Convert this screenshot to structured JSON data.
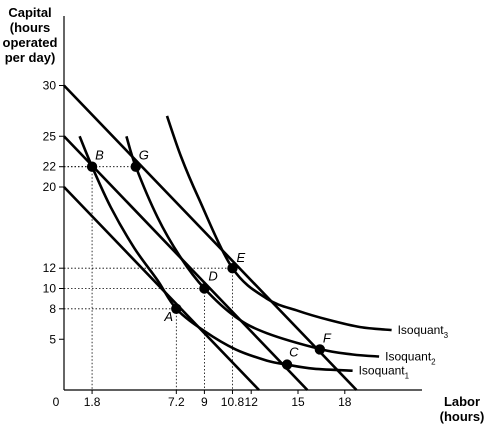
{
  "chart_data": {
    "type": "line",
    "ylabel_lines": [
      "Capital",
      "(hours",
      "operated",
      "per day)"
    ],
    "xlabel_lines": [
      "Labor",
      "(hours)"
    ],
    "origin_label": "0",
    "xlim": [
      0,
      22
    ],
    "ylim": [
      0,
      32
    ],
    "x_ticks": [
      {
        "value": 1.8,
        "label": "1.8"
      },
      {
        "value": 7.2,
        "label": "7.2"
      },
      {
        "value": 9,
        "label": "9"
      },
      {
        "value": 10.8,
        "label": "10.8"
      },
      {
        "value": 12,
        "label": "12"
      },
      {
        "value": 15,
        "label": "15"
      },
      {
        "value": 18,
        "label": "18"
      }
    ],
    "y_ticks": [
      {
        "value": 5,
        "label": "5"
      },
      {
        "value": 8,
        "label": "8"
      },
      {
        "value": 10,
        "label": "10"
      },
      {
        "value": 12,
        "label": "12"
      },
      {
        "value": 20,
        "label": "20"
      },
      {
        "value": 22,
        "label": "22"
      },
      {
        "value": 25,
        "label": "25"
      },
      {
        "value": 30,
        "label": "30"
      }
    ],
    "isocost_lines": [
      {
        "x": [
          0,
          12.5
        ],
        "y": [
          20,
          0
        ]
      },
      {
        "x": [
          0,
          15.6
        ],
        "y": [
          25,
          0
        ]
      },
      {
        "x": [
          0,
          18.75
        ],
        "y": [
          30,
          0
        ]
      }
    ],
    "isoquants": [
      {
        "name": "Isoquant",
        "sub": "1",
        "points": [
          [
            1.0,
            25.0
          ],
          [
            1.8,
            22.0
          ],
          [
            3.0,
            18.0
          ],
          [
            4.5,
            14.0
          ],
          [
            6.0,
            10.8
          ],
          [
            7.2,
            8.0
          ],
          [
            9.0,
            5.8
          ],
          [
            11.0,
            4.0
          ],
          [
            13.0,
            2.9
          ],
          [
            14.3,
            2.5
          ],
          [
            16.0,
            2.1
          ],
          [
            18.5,
            1.9
          ]
        ]
      },
      {
        "name": "Isoquant",
        "sub": "2",
        "points": [
          [
            4.0,
            25.0
          ],
          [
            4.6,
            22.0
          ],
          [
            6.0,
            17.0
          ],
          [
            7.5,
            13.0
          ],
          [
            9.0,
            10.0
          ],
          [
            11.0,
            7.2
          ],
          [
            13.0,
            5.6
          ],
          [
            16.5,
            4.0
          ],
          [
            18.5,
            3.5
          ],
          [
            20.2,
            3.3
          ]
        ]
      },
      {
        "name": "Isoquant",
        "sub": "3",
        "points": [
          [
            6.6,
            27.0
          ],
          [
            7.5,
            23.0
          ],
          [
            8.6,
            19.0
          ],
          [
            10.8,
            12.0
          ],
          [
            13.0,
            9.0
          ],
          [
            15.0,
            7.8
          ],
          [
            17.0,
            6.9
          ],
          [
            19.0,
            6.2
          ],
          [
            21.0,
            5.9
          ]
        ]
      }
    ],
    "points": [
      {
        "label": "A",
        "x": 7.2,
        "y": 8
      },
      {
        "label": "B",
        "x": 1.8,
        "y": 22
      },
      {
        "label": "C",
        "x": 14.3,
        "y": 2.5
      },
      {
        "label": "D",
        "x": 9,
        "y": 10
      },
      {
        "label": "E",
        "x": 10.8,
        "y": 12
      },
      {
        "label": "F",
        "x": 16.4,
        "y": 4
      },
      {
        "label": "G",
        "x": 4.6,
        "y": 22
      }
    ]
  }
}
